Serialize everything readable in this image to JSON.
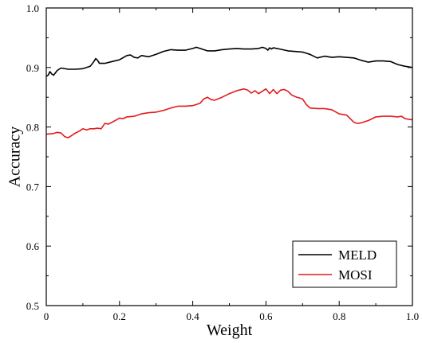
{
  "chart_data": {
    "type": "line",
    "xlabel": "Weight",
    "ylabel": "Accuracy",
    "xlim": [
      0,
      1.0
    ],
    "ylim": [
      0.5,
      1.0
    ],
    "x_ticks": [
      "0",
      "0.2",
      "0.4",
      "0.6",
      "0.8",
      "1.0"
    ],
    "y_ticks": [
      "0.5",
      "0.6",
      "0.7",
      "0.8",
      "0.9",
      "1.0"
    ],
    "grid": false,
    "legend_position": "bottom-right",
    "series": [
      {
        "name": "MELD",
        "color": "#000000",
        "points": [
          [
            0.0,
            0.885
          ],
          [
            0.005,
            0.887
          ],
          [
            0.01,
            0.893
          ],
          [
            0.015,
            0.889
          ],
          [
            0.02,
            0.887
          ],
          [
            0.03,
            0.895
          ],
          [
            0.04,
            0.899
          ],
          [
            0.06,
            0.897
          ],
          [
            0.08,
            0.897
          ],
          [
            0.1,
            0.898
          ],
          [
            0.12,
            0.902
          ],
          [
            0.13,
            0.91
          ],
          [
            0.135,
            0.915
          ],
          [
            0.14,
            0.912
          ],
          [
            0.145,
            0.907
          ],
          [
            0.16,
            0.907
          ],
          [
            0.18,
            0.91
          ],
          [
            0.2,
            0.913
          ],
          [
            0.22,
            0.92
          ],
          [
            0.23,
            0.921
          ],
          [
            0.24,
            0.917
          ],
          [
            0.25,
            0.916
          ],
          [
            0.26,
            0.92
          ],
          [
            0.28,
            0.918
          ],
          [
            0.3,
            0.922
          ],
          [
            0.32,
            0.927
          ],
          [
            0.34,
            0.93
          ],
          [
            0.36,
            0.929
          ],
          [
            0.38,
            0.929
          ],
          [
            0.4,
            0.932
          ],
          [
            0.41,
            0.934
          ],
          [
            0.42,
            0.932
          ],
          [
            0.44,
            0.928
          ],
          [
            0.46,
            0.928
          ],
          [
            0.48,
            0.93
          ],
          [
            0.5,
            0.931
          ],
          [
            0.52,
            0.932
          ],
          [
            0.54,
            0.931
          ],
          [
            0.56,
            0.931
          ],
          [
            0.58,
            0.932
          ],
          [
            0.59,
            0.934
          ],
          [
            0.6,
            0.932
          ],
          [
            0.605,
            0.929
          ],
          [
            0.61,
            0.933
          ],
          [
            0.615,
            0.931
          ],
          [
            0.62,
            0.933
          ],
          [
            0.63,
            0.932
          ],
          [
            0.66,
            0.928
          ],
          [
            0.7,
            0.926
          ],
          [
            0.72,
            0.922
          ],
          [
            0.74,
            0.916
          ],
          [
            0.76,
            0.919
          ],
          [
            0.78,
            0.917
          ],
          [
            0.8,
            0.918
          ],
          [
            0.82,
            0.917
          ],
          [
            0.84,
            0.916
          ],
          [
            0.86,
            0.912
          ],
          [
            0.88,
            0.909
          ],
          [
            0.9,
            0.911
          ],
          [
            0.92,
            0.911
          ],
          [
            0.94,
            0.91
          ],
          [
            0.96,
            0.905
          ],
          [
            0.98,
            0.902
          ],
          [
            1.0,
            0.9
          ]
        ]
      },
      {
        "name": "MOSI",
        "color": "#e31a1c",
        "points": [
          [
            0.0,
            0.788
          ],
          [
            0.02,
            0.789
          ],
          [
            0.03,
            0.791
          ],
          [
            0.04,
            0.79
          ],
          [
            0.05,
            0.784
          ],
          [
            0.06,
            0.782
          ],
          [
            0.07,
            0.786
          ],
          [
            0.08,
            0.79
          ],
          [
            0.09,
            0.793
          ],
          [
            0.1,
            0.797
          ],
          [
            0.11,
            0.795
          ],
          [
            0.12,
            0.797
          ],
          [
            0.13,
            0.797
          ],
          [
            0.14,
            0.798
          ],
          [
            0.15,
            0.797
          ],
          [
            0.16,
            0.806
          ],
          [
            0.17,
            0.805
          ],
          [
            0.18,
            0.808
          ],
          [
            0.2,
            0.815
          ],
          [
            0.21,
            0.814
          ],
          [
            0.22,
            0.817
          ],
          [
            0.24,
            0.818
          ],
          [
            0.26,
            0.822
          ],
          [
            0.28,
            0.824
          ],
          [
            0.3,
            0.825
          ],
          [
            0.32,
            0.828
          ],
          [
            0.34,
            0.832
          ],
          [
            0.36,
            0.835
          ],
          [
            0.38,
            0.835
          ],
          [
            0.4,
            0.836
          ],
          [
            0.42,
            0.84
          ],
          [
            0.43,
            0.847
          ],
          [
            0.44,
            0.85
          ],
          [
            0.45,
            0.846
          ],
          [
            0.46,
            0.845
          ],
          [
            0.48,
            0.85
          ],
          [
            0.5,
            0.856
          ],
          [
            0.52,
            0.861
          ],
          [
            0.54,
            0.864
          ],
          [
            0.55,
            0.862
          ],
          [
            0.56,
            0.857
          ],
          [
            0.57,
            0.861
          ],
          [
            0.58,
            0.856
          ],
          [
            0.6,
            0.864
          ],
          [
            0.61,
            0.856
          ],
          [
            0.62,
            0.863
          ],
          [
            0.63,
            0.856
          ],
          [
            0.64,
            0.862
          ],
          [
            0.65,
            0.863
          ],
          [
            0.66,
            0.86
          ],
          [
            0.67,
            0.854
          ],
          [
            0.68,
            0.851
          ],
          [
            0.7,
            0.847
          ],
          [
            0.71,
            0.838
          ],
          [
            0.72,
            0.832
          ],
          [
            0.74,
            0.831
          ],
          [
            0.76,
            0.831
          ],
          [
            0.78,
            0.829
          ],
          [
            0.8,
            0.822
          ],
          [
            0.82,
            0.82
          ],
          [
            0.83,
            0.814
          ],
          [
            0.84,
            0.808
          ],
          [
            0.85,
            0.806
          ],
          [
            0.86,
            0.807
          ],
          [
            0.88,
            0.811
          ],
          [
            0.9,
            0.817
          ],
          [
            0.92,
            0.818
          ],
          [
            0.94,
            0.818
          ],
          [
            0.96,
            0.817
          ],
          [
            0.97,
            0.818
          ],
          [
            0.98,
            0.814
          ],
          [
            1.0,
            0.812
          ]
        ]
      }
    ]
  }
}
